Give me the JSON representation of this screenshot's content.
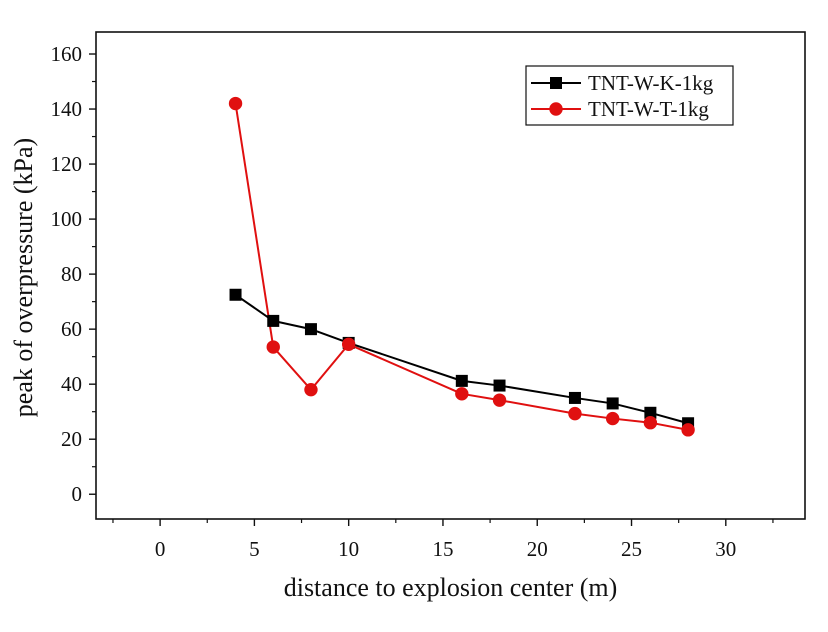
{
  "chart_data": {
    "type": "line",
    "title": "",
    "xlabel": "distance to explosion center (m)",
    "ylabel": "peak of overpressure (kPa)",
    "xlim": [
      -3.4,
      34.2
    ],
    "ylim": [
      -9,
      168
    ],
    "xticks": [
      0,
      5,
      10,
      15,
      20,
      25,
      30
    ],
    "yticks": [
      0,
      20,
      40,
      60,
      80,
      100,
      120,
      140,
      160
    ],
    "legend": {
      "placement": "top-right"
    },
    "series": [
      {
        "name": "TNT-W-K-1kg",
        "color": "#000000",
        "marker": "square",
        "x": [
          4,
          6,
          8,
          10,
          16,
          18,
          22,
          24,
          26,
          28
        ],
        "y": [
          72.5,
          63,
          60,
          55,
          41.2,
          39.5,
          35,
          33,
          29.6,
          25.8
        ]
      },
      {
        "name": "TNT-W-T-1kg",
        "color": "#e01010",
        "marker": "circle",
        "x": [
          4,
          6,
          8,
          10,
          16,
          18,
          22,
          24,
          26,
          28
        ],
        "y": [
          142,
          53.5,
          38,
          54.5,
          36.5,
          34.2,
          29.3,
          27.5,
          26,
          23.4
        ]
      }
    ]
  }
}
